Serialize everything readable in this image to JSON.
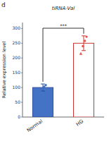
{
  "chart_data": {
    "type": "bar",
    "subtitle": "tiRNA-Val",
    "ylabel": "Relative expression level",
    "categories": [
      "Normal",
      "HG"
    ],
    "values": [
      100,
      250
    ],
    "errors": [
      12,
      25
    ],
    "colors": [
      "#4472C4",
      "#ffffff"
    ],
    "edge_colors": [
      "#2E4F9E",
      "#CC3333"
    ],
    "points": [
      [
        88,
        95,
        103,
        108
      ],
      [
        215,
        240,
        258,
        272
      ]
    ],
    "point_colors": [
      "#4472C4",
      "#E8534A"
    ],
    "point_markers": [
      [
        "circle",
        "circle",
        "circle",
        "circle"
      ],
      [
        "triangle",
        "circle",
        "circle",
        "circle"
      ]
    ],
    "annotations": [
      {
        "text": "d"
      },
      {
        "text": "***"
      }
    ],
    "ylim": [
      0,
      320
    ],
    "yticks": [
      0,
      50,
      100,
      150,
      200,
      250,
      300
    ],
    "grid": false
  }
}
